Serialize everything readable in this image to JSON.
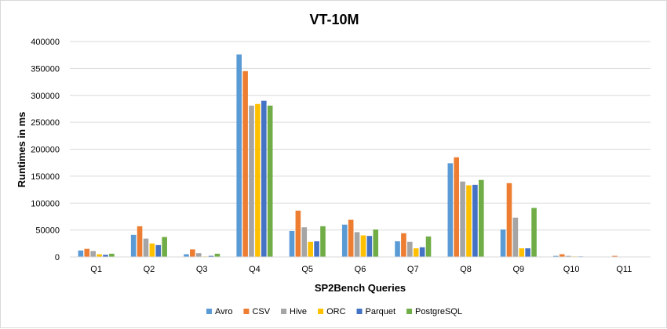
{
  "chart_data": {
    "type": "bar",
    "title": "VT-10M",
    "xlabel": "SP2Bench Queries",
    "ylabel": "Runtimes in ms",
    "ylim": [
      0,
      400000
    ],
    "yticks": [
      0,
      50000,
      100000,
      150000,
      200000,
      250000,
      300000,
      350000,
      400000
    ],
    "ytick_labels": [
      "0",
      "50000",
      "100000",
      "150000",
      "200000",
      "250000",
      "300000",
      "350000",
      "400000"
    ],
    "grid": true,
    "legend_position": "bottom",
    "categories": [
      "Q1",
      "Q2",
      "Q3",
      "Q4",
      "Q5",
      "Q6",
      "Q7",
      "Q8",
      "Q9",
      "Q10",
      "Q11"
    ],
    "series": [
      {
        "name": "Avro",
        "color": "#5b9bd5",
        "values": [
          12000,
          41000,
          5000,
          376000,
          48000,
          60000,
          29000,
          174000,
          51000,
          2000,
          0
        ]
      },
      {
        "name": "CSV",
        "color": "#ed7d31",
        "values": [
          15000,
          57000,
          14000,
          345000,
          86000,
          69000,
          44000,
          185000,
          137000,
          5000,
          2000
        ]
      },
      {
        "name": "Hive",
        "color": "#a5a5a5",
        "values": [
          11000,
          34000,
          7000,
          281000,
          55000,
          46000,
          28000,
          140000,
          73000,
          2000,
          0
        ]
      },
      {
        "name": "ORC",
        "color": "#ffc000",
        "values": [
          5000,
          25000,
          1000,
          284000,
          28000,
          40000,
          16000,
          133000,
          16000,
          1000,
          0
        ]
      },
      {
        "name": "Parquet",
        "color": "#4472c4",
        "values": [
          4000,
          22000,
          2000,
          290000,
          29000,
          39000,
          18000,
          134000,
          16000,
          1000,
          0
        ]
      },
      {
        "name": "PostgreSQL",
        "color": "#70ad47",
        "values": [
          6000,
          37000,
          6000,
          281000,
          57000,
          51000,
          38000,
          143000,
          91000,
          0,
          0
        ]
      }
    ]
  }
}
